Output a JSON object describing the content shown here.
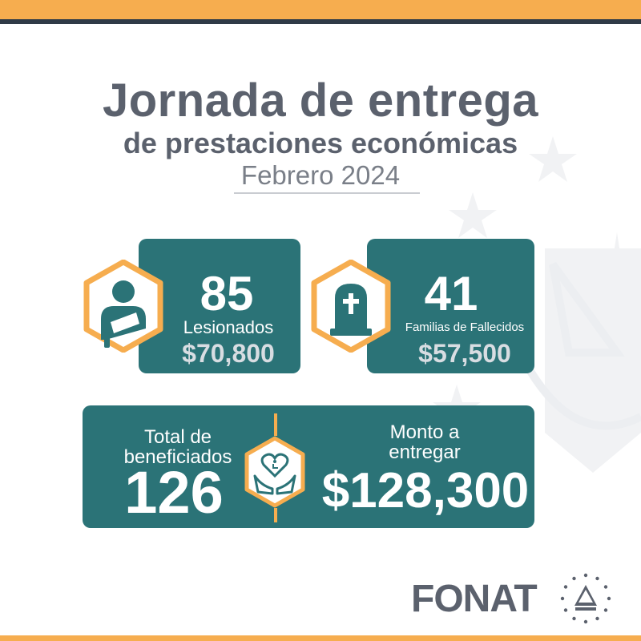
{
  "header": {
    "title_line1": "Jornada de entrega",
    "title_line2": "de prestaciones económicas",
    "subtitle": "Febrero 2024"
  },
  "stats": {
    "injured": {
      "count": "85",
      "label": "Lesionados",
      "amount": "$70,800",
      "icon": "injured-person-arm-sling-icon"
    },
    "deceased": {
      "count": "41",
      "label": "Familias de Fallecidos",
      "amount": "$57,500",
      "icon": "tombstone-cross-icon"
    }
  },
  "totals": {
    "beneficiaries_label": "Total de beneficiados",
    "beneficiaries_count": "126",
    "amount_label": "Monto a entregar",
    "amount_value": "$128,300",
    "icon": "hands-heart-wheelchair-icon"
  },
  "footer": {
    "logo_text": "FONAT",
    "seal_icon": "el-salvador-coat-of-arms-icon"
  },
  "colors": {
    "accent": "#f6ad4f",
    "teal": "#2b7377",
    "dark_text": "#5b616d",
    "navy": "#2f3a47"
  }
}
